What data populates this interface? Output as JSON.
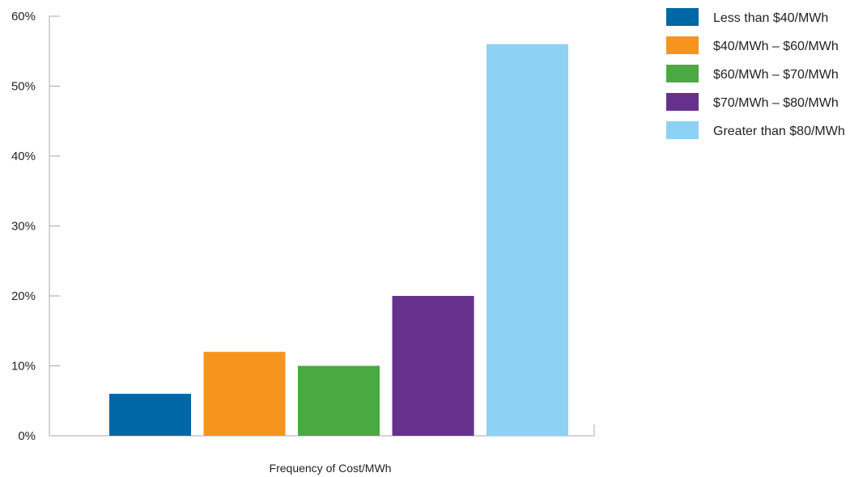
{
  "chart_data": {
    "type": "bar",
    "title": "",
    "xlabel": "Frequency of Cost/MWh",
    "ylabel": "",
    "ylim": [
      0,
      60
    ],
    "yticks": [
      0,
      10,
      20,
      30,
      40,
      50,
      60
    ],
    "ytick_labels": [
      "0%",
      "10%",
      "20%",
      "30%",
      "40%",
      "50%",
      "60%"
    ],
    "grid": false,
    "legend_position": "top-right",
    "series": [
      {
        "name": "Less than $40/MWh",
        "value": 6,
        "color": "#0067a7"
      },
      {
        "name": "$40/MWh – $60/MWh",
        "value": 12,
        "color": "#f7941d"
      },
      {
        "name": "$60/MWh – $70/MWh",
        "value": 10,
        "color": "#4aa942"
      },
      {
        "name": "$70/MWh – $80/MWh",
        "value": 20,
        "color": "#66318c"
      },
      {
        "name": "Greater than $80/MWh",
        "value": 56,
        "color": "#8dd2f4"
      }
    ]
  }
}
